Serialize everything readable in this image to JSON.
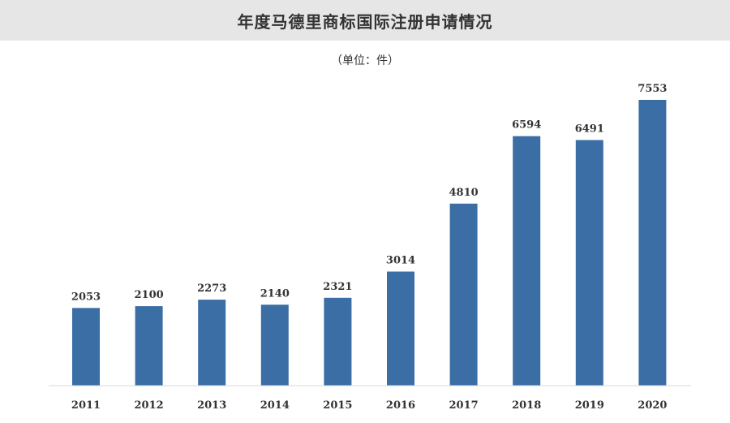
{
  "header": {
    "title": "年度马德里商标国际注册申请情况",
    "unit": "（单位：件）"
  },
  "colors": {
    "bar": "#3a6ea5",
    "title_bg": "#e6e6e6",
    "axis": "#d9d9d9",
    "text": "#333333"
  },
  "chart_data": {
    "type": "bar",
    "title": "年度马德里商标国际注册申请情况",
    "subtitle": "（单位：件）",
    "categories": [
      "2011",
      "2012",
      "2013",
      "2014",
      "2015",
      "2016",
      "2017",
      "2018",
      "2019",
      "2020"
    ],
    "values": [
      2053,
      2100,
      2273,
      2140,
      2321,
      3014,
      4810,
      6594,
      6491,
      7553
    ],
    "xlabel": "",
    "ylabel": "",
    "ylim": [
      0,
      7553
    ],
    "grid": false,
    "legend": "none",
    "data_labels": true
  }
}
